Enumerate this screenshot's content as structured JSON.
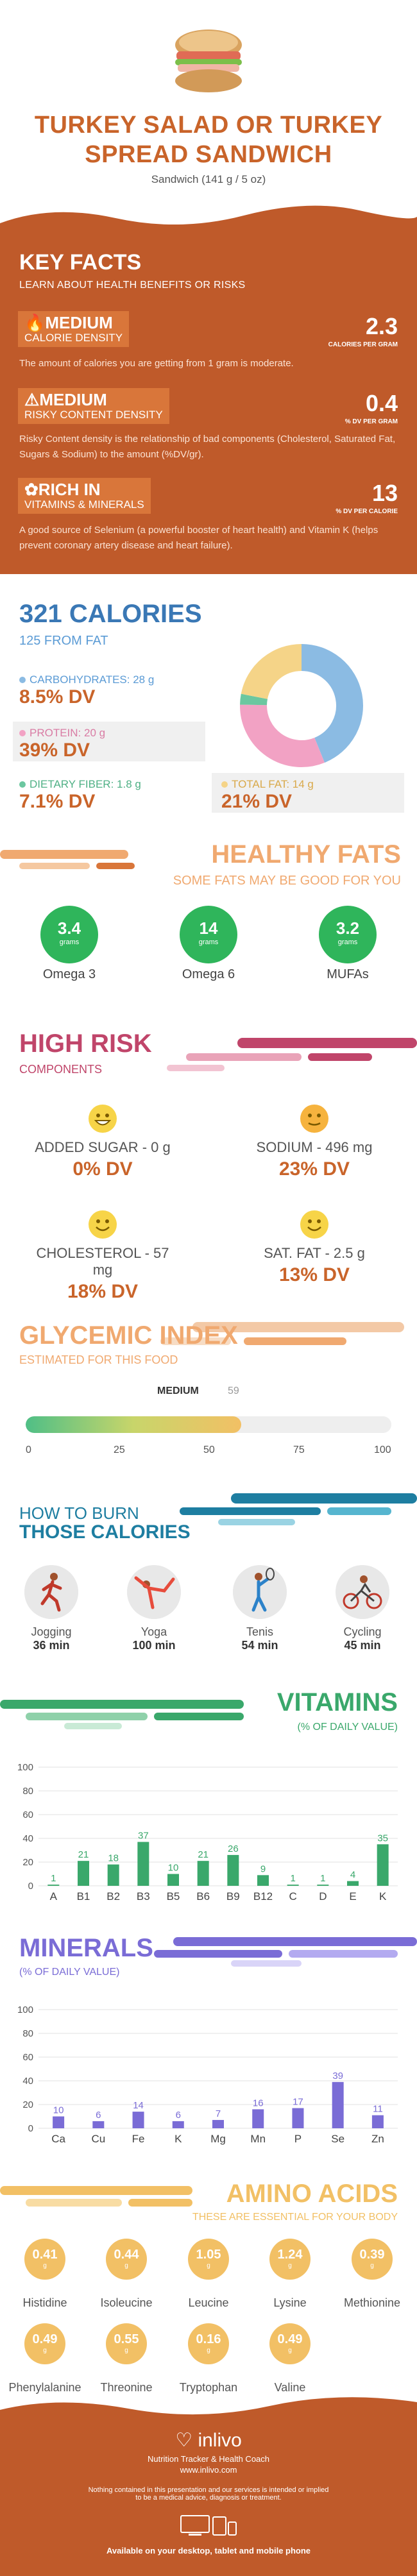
{
  "header": {
    "title_line1": "TURKEY SALAD OR TURKEY",
    "title_line2": "SPREAD SANDWICH",
    "subtitle": "Sandwich (141 g / 5 oz)",
    "image_icon": "sandwich-icon"
  },
  "key_facts": {
    "title": "KEY FACTS",
    "subtitle": "LEARN ABOUT HEALTH BENEFITS OR RISKS",
    "items": [
      {
        "icon": "flame-icon",
        "level": "MEDIUM",
        "label": "CALORIE DENSITY",
        "number": "2.3",
        "unit": "CALORIES PER GRAM",
        "desc": "The amount of calories you are getting from 1 gram is moderate."
      },
      {
        "icon": "warning-icon",
        "level": "MEDIUM",
        "label": "RISKY CONTENT DENSITY",
        "number": "0.4",
        "unit": "% DV PER GRAM",
        "desc": "Risky Content density is the relationship of bad components (Cholesterol, Saturated Fat, Sugars & Sodium) to the amount (%DV/gr)."
      },
      {
        "icon": "leaf-icon",
        "level": "RICH IN",
        "label": "VITAMINS & MINERALS",
        "number": "13",
        "unit": "% DV PER CALORIE",
        "desc": "A good source of Selenium (a powerful booster of heart health) and Vitamin K (helps prevent coronary artery disease and heart failure)."
      }
    ]
  },
  "calories": {
    "title": "321 CALORIES",
    "subtitle": "125 FROM FAT",
    "macros": [
      {
        "label": "CARBOHYDRATES: 28 g",
        "value": "8.5% DV",
        "color": "#8bbbe3"
      },
      {
        "label": "PROTEIN: 20 g",
        "value": "39% DV",
        "color": "#f2a2c4"
      },
      {
        "label": "DIETARY FIBER: 1.8 g",
        "value": "7.1% DV",
        "color": "#6cc7a0"
      },
      {
        "label": "TOTAL FAT: 14 g",
        "value": "21% DV",
        "color": "#f5d488"
      }
    ],
    "donut": [
      {
        "name": "Carbohydrates",
        "grams": 28,
        "color": "#8bbbe3"
      },
      {
        "name": "Protein",
        "grams": 20,
        "color": "#f2a2c4"
      },
      {
        "name": "Dietary Fiber",
        "grams": 1.8,
        "color": "#6cc7a0"
      },
      {
        "name": "Total Fat",
        "grams": 14,
        "color": "#f5d488"
      }
    ]
  },
  "healthy_fats": {
    "title": "HEALTHY FATS",
    "subtitle": "SOME FATS MAY BE GOOD FOR YOU",
    "items": [
      {
        "value": "3.4",
        "unit": "grams",
        "label": "Omega 3"
      },
      {
        "value": "14",
        "unit": "grams",
        "label": "Omega 6"
      },
      {
        "value": "3.2",
        "unit": "grams",
        "label": "MUFAs"
      }
    ]
  },
  "high_risk": {
    "title": "HIGH RISK",
    "subtitle": "COMPONENTS",
    "items": [
      {
        "label": "ADDED SUGAR - 0 g",
        "value": "0% DV",
        "face": "grin-face-icon"
      },
      {
        "label": "SODIUM - 496 mg",
        "value": "23% DV",
        "face": "neutral-face-icon"
      },
      {
        "label": "CHOLESTEROL - 57 mg",
        "value": "18% DV",
        "face": "smile-face-icon"
      },
      {
        "label": "SAT. FAT - 2.5 g",
        "value": "13% DV",
        "face": "smile-face-icon"
      }
    ]
  },
  "glycemic": {
    "title": "GLYCEMIC INDEX",
    "subtitle": "ESTIMATED FOR THIS FOOD",
    "level": "MEDIUM",
    "value": 59,
    "value_text": "59",
    "ticks": [
      "0",
      "25",
      "50",
      "75",
      "100"
    ]
  },
  "burn": {
    "title_line1": "HOW TO BURN",
    "title_line2": "THOSE CALORIES",
    "items": [
      {
        "name": "Jogging",
        "time": "36 min",
        "icon": "jogging-icon"
      },
      {
        "name": "Yoga",
        "time": "100 min",
        "icon": "yoga-icon"
      },
      {
        "name": "Tenis",
        "time": "54 min",
        "icon": "tennis-icon"
      },
      {
        "name": "Cycling",
        "time": "45 min",
        "icon": "cycling-icon"
      }
    ]
  },
  "chart_data": [
    {
      "type": "bar",
      "title": "VITAMINS",
      "subtitle": "(% OF DAILY VALUE)",
      "categories": [
        "A",
        "B1",
        "B2",
        "B3",
        "B5",
        "B6",
        "B9",
        "B12",
        "C",
        "D",
        "E",
        "K"
      ],
      "values": [
        1,
        21,
        18,
        37,
        10,
        21,
        26,
        9,
        1,
        1,
        4,
        35
      ],
      "value_labels": [
        "1",
        "21",
        "18",
        "37",
        "10",
        "21",
        "26",
        "9",
        "1",
        "1",
        "4",
        "35"
      ],
      "ylim": [
        0,
        100
      ],
      "yticks": [
        "0",
        "20",
        "40",
        "60",
        "80",
        "100"
      ],
      "color": "#3aa86b",
      "grid": true
    },
    {
      "type": "bar",
      "title": "MINERALS",
      "subtitle": "(% OF DAILY VALUE)",
      "categories": [
        "Ca",
        "Cu",
        "Fe",
        "K",
        "Mg",
        "Mn",
        "P",
        "Se",
        "Zn"
      ],
      "values": [
        10,
        6,
        14,
        6,
        7,
        16,
        17,
        39,
        11
      ],
      "value_labels": [
        "10",
        "6",
        "14",
        "6",
        "7",
        "16",
        "17",
        "39",
        "11"
      ],
      "ylim": [
        0,
        100
      ],
      "yticks": [
        "0",
        "20",
        "40",
        "60",
        "80",
        "100"
      ],
      "color": "#7a6cd6",
      "grid": true
    }
  ],
  "amino": {
    "title": "AMINO ACIDS",
    "subtitle": "THESE ARE ESSENTIAL FOR YOUR BODY",
    "items": [
      {
        "value": "0.41",
        "unit": "g",
        "label": "Histidine"
      },
      {
        "value": "0.44",
        "unit": "g",
        "label": "Isoleucine"
      },
      {
        "value": "1.05",
        "unit": "g",
        "label": "Leucine"
      },
      {
        "value": "1.24",
        "unit": "g",
        "label": "Lysine"
      },
      {
        "value": "0.39",
        "unit": "g",
        "label": "Methionine"
      },
      {
        "value": "0.49",
        "unit": "g",
        "label": "Phenylalanine"
      },
      {
        "value": "0.55",
        "unit": "g",
        "label": "Threonine"
      },
      {
        "value": "0.16",
        "unit": "g",
        "label": "Tryptophan"
      },
      {
        "value": "0.49",
        "unit": "g",
        "label": "Valine"
      }
    ]
  },
  "footer": {
    "brand": "inlivo",
    "tagline": "Nutrition Tracker & Health Coach",
    "url": "www.inlivo.com",
    "disclaimer_line1": "Nothing contained in this presentation and our services is intended or implied",
    "disclaimer_line2": "to be a medical advice, diagnosis or treatment.",
    "available": "Available on your desktop, tablet and mobile phone"
  }
}
